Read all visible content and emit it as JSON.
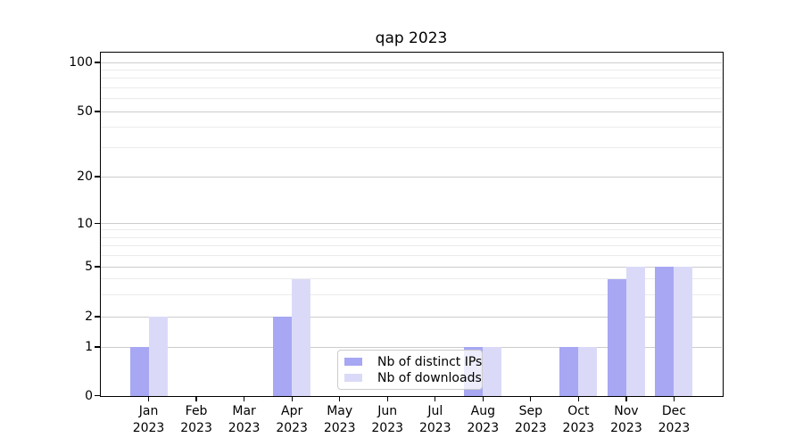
{
  "title": "qap 2023",
  "y_axis": {
    "tick_labels": [
      "0",
      "1",
      "2",
      "5",
      "10",
      "20",
      "50",
      "100"
    ],
    "tick_values": [
      0,
      1,
      2,
      5,
      10,
      20,
      50,
      100
    ],
    "minor_tick_values": [
      3,
      4,
      6,
      7,
      8,
      9,
      30,
      40,
      60,
      70,
      80,
      90
    ]
  },
  "x_axis": {
    "months": [
      "Jan",
      "Feb",
      "Mar",
      "Apr",
      "May",
      "Jun",
      "Jul",
      "Aug",
      "Sep",
      "Oct",
      "Nov",
      "Dec"
    ],
    "year": "2023"
  },
  "legend": {
    "items": [
      {
        "label": "Nb of distinct IPs",
        "color": "#a7a7f3"
      },
      {
        "label": "Nb of downloads",
        "color": "#dadaf8"
      }
    ]
  },
  "chart_data": {
    "type": "bar",
    "title": "qap 2023",
    "categories": [
      "Jan 2023",
      "Feb 2023",
      "Mar 2023",
      "Apr 2023",
      "May 2023",
      "Jun 2023",
      "Jul 2023",
      "Aug 2023",
      "Sep 2023",
      "Oct 2023",
      "Nov 2023",
      "Dec 2023"
    ],
    "series": [
      {
        "name": "Nb of distinct IPs",
        "color": "#a7a7f3",
        "values": [
          1,
          0,
          0,
          2,
          0,
          0,
          0,
          1,
          0,
          1,
          4,
          5
        ]
      },
      {
        "name": "Nb of downloads",
        "color": "#dadaf8",
        "values": [
          2,
          0,
          0,
          4,
          0,
          0,
          0,
          1,
          0,
          1,
          5,
          5
        ]
      }
    ],
    "xlabel": "",
    "ylabel": "",
    "yscale": "log-like",
    "yticks": [
      0,
      1,
      2,
      5,
      10,
      20,
      50,
      100
    ],
    "minor_yticks": [
      3,
      4,
      6,
      7,
      8,
      9,
      30,
      40,
      60,
      70,
      80,
      90
    ],
    "ylim": [
      0,
      115
    ],
    "grid": true,
    "legend_position": "lower center"
  }
}
